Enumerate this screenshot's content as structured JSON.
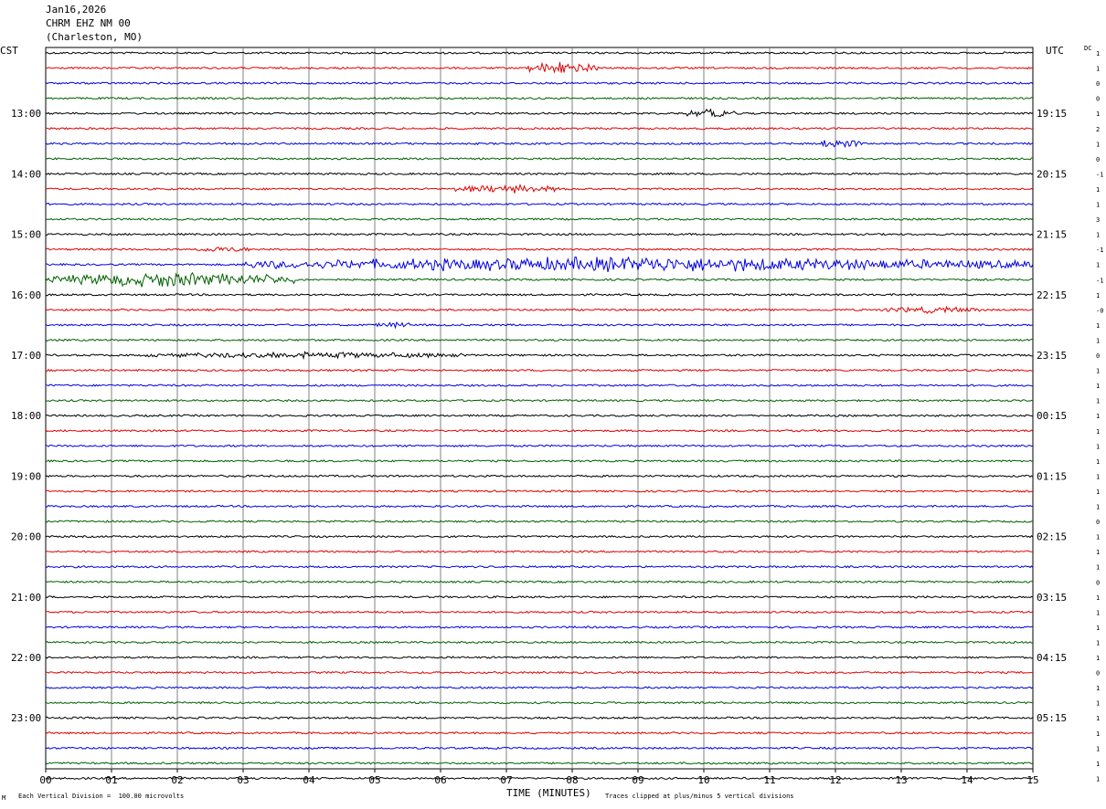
{
  "header": {
    "date": "Jan16,2026",
    "station": "CHRM EHZ NM 00",
    "location": "(Charleston, MO)"
  },
  "axes": {
    "left_zone": "CST",
    "right_zone": "UTC",
    "dc_label": "DC",
    "xlabel": "TIME (MINUTES)",
    "x_ticks": [
      "00",
      "01",
      "02",
      "03",
      "04",
      "05",
      "06",
      "07",
      "08",
      "09",
      "10",
      "11",
      "12",
      "13",
      "14",
      "15"
    ]
  },
  "footer": {
    "scale_note": "Each Vertical Division =  100.00 microvolts",
    "clip_note": "Traces clipped at plus/minus 5 vertical divisions",
    "corner_mark": "M"
  },
  "colors": {
    "trace_cycle": [
      "#000000",
      "#e00000",
      "#0000e0",
      "#006000"
    ],
    "grid": "#808080"
  },
  "chart_data": {
    "type": "line",
    "title": "CHRM EHZ NM 00",
    "xlabel": "TIME (MINUTES)",
    "xlim": [
      0,
      15
    ],
    "traces_per_hour": 4,
    "minutes_per_trace": 15,
    "hour_labels_cst": [
      "13:00",
      "14:00",
      "15:00",
      "16:00",
      "17:00",
      "18:00",
      "19:00",
      "20:00",
      "21:00",
      "22:00",
      "23:00"
    ],
    "hour_labels_utc": [
      "19:15",
      "20:15",
      "21:15",
      "22:15",
      "23:15",
      "00:15",
      "01:15",
      "02:15",
      "03:15",
      "04:15",
      "05:15"
    ],
    "dc_offsets": [
      "1",
      "1",
      "0",
      "0",
      "1",
      "2",
      "1",
      "0",
      "-1",
      "1",
      "1",
      "3",
      "1",
      "-1",
      "1",
      "-1",
      "1",
      "-0",
      "1",
      "1",
      "0",
      "1",
      "1",
      "1",
      "1",
      "1",
      "1",
      "1",
      "1",
      "1",
      "1",
      "0",
      "1",
      "1",
      "1",
      "0",
      "1",
      "1",
      "1",
      "1",
      "1",
      "0",
      "1",
      "1",
      "1",
      "1",
      "1",
      "1",
      "1"
    ],
    "num_traces": 49,
    "events": [
      {
        "trace": 1,
        "start_min": 7.3,
        "end_min": 8.4,
        "amp": 6
      },
      {
        "trace": 4,
        "start_min": 9.7,
        "end_min": 10.5,
        "amp": 4
      },
      {
        "trace": 6,
        "start_min": 11.6,
        "end_min": 12.4,
        "amp": 4
      },
      {
        "trace": 9,
        "start_min": 6.2,
        "end_min": 7.8,
        "amp": 4
      },
      {
        "trace": 13,
        "start_min": 2.3,
        "end_min": 3.1,
        "amp": 3
      },
      {
        "trace": 14,
        "start_min": 3.0,
        "end_min": 15.0,
        "amp": 7
      },
      {
        "trace": 15,
        "start_min": 0.0,
        "end_min": 3.8,
        "amp": 7
      },
      {
        "trace": 17,
        "start_min": 12.7,
        "end_min": 14.2,
        "amp": 3
      },
      {
        "trace": 18,
        "start_min": 5.0,
        "end_min": 5.6,
        "amp": 3
      },
      {
        "trace": 20,
        "start_min": 1.5,
        "end_min": 6.5,
        "amp": 3
      }
    ]
  }
}
